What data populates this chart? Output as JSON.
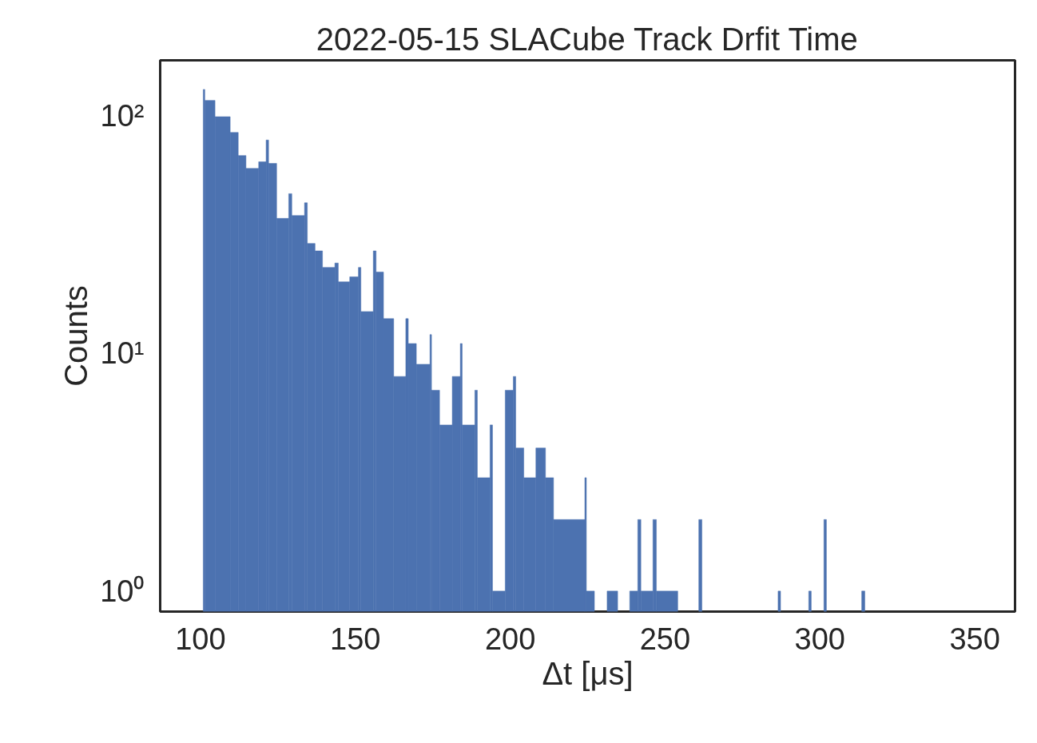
{
  "chart_data": {
    "type": "histogram",
    "title": "2022-05-15 SLACube Track Drfit Time",
    "xlabel": "Δt [μs]",
    "ylabel": "Counts",
    "color": "#4c72b0",
    "log": "y",
    "grid": false,
    "bins": [
      100.9,
      101.4,
      104.7,
      109.6,
      112.2,
      114.7,
      118.8,
      121.2,
      122.0,
      124.6,
      128.5,
      129.5,
      133.6,
      134.5,
      137.0,
      139.4,
      143.4,
      144.5,
      148.2,
      151.0,
      151.8,
      155.8,
      156.7,
      159.1,
      162.4,
      166.3,
      167.1,
      169.7,
      174.1,
      174.6,
      177.2,
      181.3,
      183.9,
      184.5,
      188.6,
      189.4,
      193.5,
      194.3,
      198.4,
      201.0,
      201.8,
      204.4,
      208.3,
      211.4,
      214.0,
      224.1,
      224.6,
      227.2,
      231.3,
      234.7,
      238.6,
      241.2,
      242.2,
      246.1,
      247.2,
      254.1,
      260.9,
      261.9,
      286.5,
      287.3,
      296.4,
      297.2,
      301.3,
      302.1,
      313.5,
      314.5
    ],
    "values": [
      129,
      116,
      99,
      85,
      68,
      60,
      64,
      79,
      63,
      37,
      47,
      38,
      43,
      29,
      27,
      23,
      24,
      20,
      21,
      23,
      15,
      27,
      22,
      14,
      8,
      14,
      11,
      9,
      12,
      7,
      5,
      8,
      11,
      5,
      7,
      3,
      5,
      1,
      7,
      8,
      4,
      3,
      4,
      3,
      2,
      3,
      1,
      null,
      1,
      null,
      1,
      2,
      1,
      2,
      1,
      null,
      2,
      null,
      1,
      null,
      1,
      null,
      2,
      null,
      1
    ],
    "xlim": [
      87,
      363
    ],
    "xticks": [
      100,
      150,
      200,
      250,
      300,
      350
    ],
    "ylim": [
      0.82,
      171
    ],
    "yticks": [
      {
        "value": 1,
        "label": "10⁰"
      },
      {
        "value": 10,
        "label": "10¹"
      },
      {
        "value": 100,
        "label": "10²"
      }
    ]
  }
}
